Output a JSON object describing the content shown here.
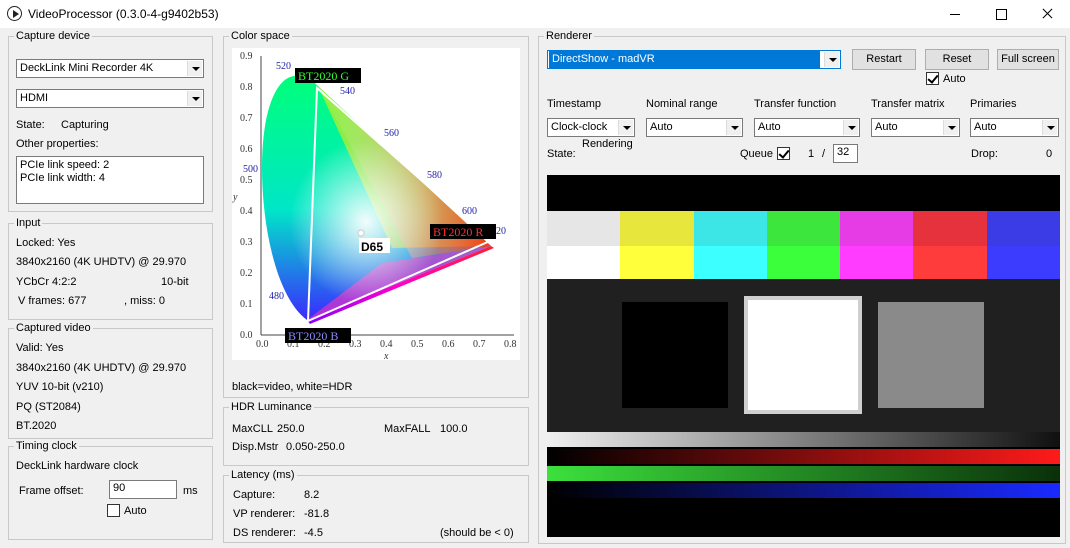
{
  "window": {
    "title": "VideoProcessor (0.3.0-4-g9402b53)",
    "app_icon": "play-circle-icon"
  },
  "capture_device": {
    "group_title": "Capture device",
    "device": "DeckLink Mini Recorder 4K",
    "input": "HDMI",
    "state_label": "State:",
    "state_value": "Capturing",
    "other_label": "Other properties:",
    "properties": [
      "PCIe link speed: 2",
      "PCIe link width: 4"
    ]
  },
  "input": {
    "group_title": "Input",
    "locked": "Locked:   Yes",
    "mode": "3840x2160 (4K UHDTV) @ 29.970",
    "format": "YCbCr 4:2:2",
    "bitdepth": "10-bit",
    "frames": "V frames:  677",
    "miss": ", miss:   0"
  },
  "captured_video": {
    "group_title": "Captured video",
    "valid": "Valid:     Yes",
    "mode": "3840x2160 (4K UHDTV) @ 29.970",
    "pixel": "YUV 10-bit (v210)",
    "transfer": "PQ (ST2084)",
    "gamut": "BT.2020"
  },
  "timing_clock": {
    "group_title": "Timing clock",
    "source": "DeckLink hardware clock",
    "offset_label": "Frame offset:",
    "offset_value": "90",
    "offset_unit": "ms",
    "auto_label": "Auto",
    "auto_checked": false
  },
  "color_space": {
    "group_title": "Color space",
    "caption": "black=video, white=HDR",
    "x_axis_label": "x",
    "y_axis_label": "y",
    "x_ticks": [
      "0.0",
      "0.1",
      "0.2",
      "0.3",
      "0.4",
      "0.5",
      "0.6",
      "0.7",
      "0.8"
    ],
    "y_ticks": [
      "0.0",
      "0.1",
      "0.2",
      "0.3",
      "0.4",
      "0.5",
      "0.6",
      "0.7",
      "0.8",
      "0.9"
    ],
    "wavelengths": [
      "520",
      "540",
      "560",
      "580",
      "600",
      "500",
      "480",
      "620"
    ],
    "primaries": [
      "BT2020 G",
      "BT2020 R",
      "BT2020 B"
    ],
    "white_point": "D65"
  },
  "hdr_luminance": {
    "group_title": "HDR Luminance",
    "maxcll_label": "MaxCLL",
    "maxcll_value": "250.0",
    "maxfall_label": "MaxFALL",
    "maxfall_value": "100.0",
    "disp_label": "Disp.Mstr",
    "disp_value": "0.050-250.0"
  },
  "latency": {
    "group_title": "Latency (ms)",
    "capture_label": "Capture:",
    "capture_value": "8.2",
    "vp_label": "VP renderer:",
    "vp_value": "-81.8",
    "ds_label": "DS renderer:",
    "ds_value": "-4.5",
    "ds_note": "(should be < 0)"
  },
  "renderer": {
    "group_title": "Renderer",
    "selected": "DirectShow - madVR",
    "restart_label": "Restart",
    "reset_label": "Reset",
    "fullscreen_label": "Full screen",
    "auto_label": "Auto",
    "auto_checked": true,
    "timestamp_label": "Timestamp",
    "timestamp_value": "Clock-clock",
    "nominal_label": "Nominal range",
    "nominal_value": "Auto",
    "transfer_label": "Transfer function",
    "transfer_value": "Auto",
    "matrix_label": "Transfer matrix",
    "matrix_value": "Auto",
    "primaries_label": "Primaries",
    "primaries_value": "Auto",
    "state_label": "State:",
    "state_value": "Rendering",
    "queue_label": "Queue",
    "queue_checked": true,
    "queue_current": "1",
    "queue_sep": "/",
    "queue_max": "32",
    "drop_label": "Drop:",
    "drop_value": "0"
  },
  "test_pattern": {
    "bars_top": [
      "#e6e6e6",
      "#e6e63c",
      "#3ce6e6",
      "#3ce63c",
      "#e63ce6",
      "#e6323c",
      "#3c3ce6"
    ],
    "bars_bottom": [
      "#ffffff",
      "#ffff3c",
      "#3cffff",
      "#3cff3c",
      "#ff3cff",
      "#ff3c3c",
      "#3c3cff"
    ]
  }
}
